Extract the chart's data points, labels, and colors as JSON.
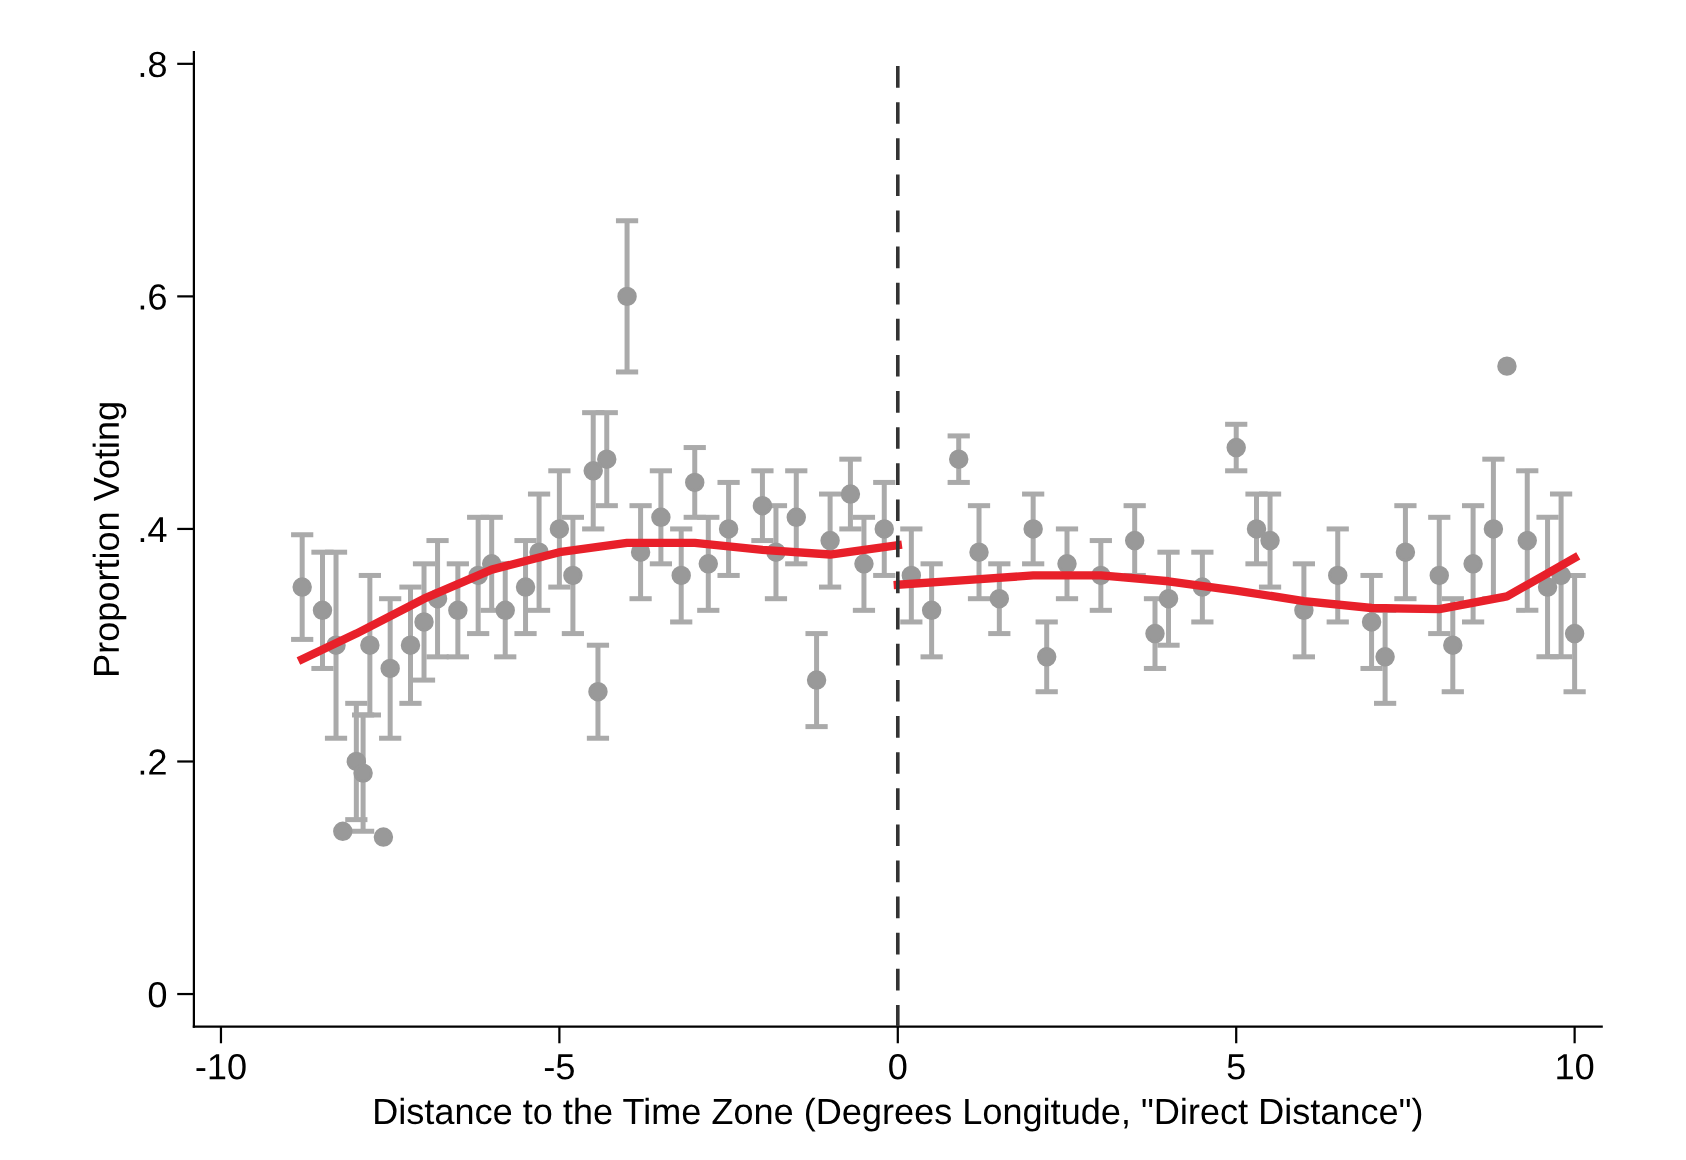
{
  "chart_data": {
    "type": "scatter",
    "xlabel": "Distance to the Time Zone (Degrees Longitude, \"Direct Distance\")",
    "ylabel": "Proportion Voting",
    "xlim": [
      -10.4,
      10.4
    ],
    "ylim": [
      -0.028,
      0.81
    ],
    "xticks": [
      -10,
      -5,
      0,
      5,
      10
    ],
    "yticks": [
      0,
      {
        "value": 0.2,
        "label": ".2"
      },
      {
        "value": 0.4,
        "label": ".4"
      },
      {
        "value": 0.6,
        "label": ".6"
      },
      {
        "value": 0.8,
        "label": ".8"
      }
    ],
    "grid": false,
    "marker": "circle",
    "ref_lines": [
      {
        "axis": "x",
        "value": 0,
        "color": "#333333",
        "line_style": "dashed"
      }
    ],
    "series": [
      {
        "color": "#999999",
        "x": [
          -8.8,
          -8.5,
          -8.3,
          -8.2,
          -8.0,
          -7.9,
          -7.8,
          -7.6,
          -7.5,
          -7.2,
          -7.0,
          -6.8,
          -6.5,
          -6.2,
          -6.0,
          -5.8,
          -5.5,
          -5.3,
          -5.0,
          -4.8,
          -4.5,
          -4.43,
          -4.3,
          -4.0,
          -3.8,
          -3.5,
          -3.2,
          -3.0,
          -2.8,
          -2.5,
          -2.0,
          -1.8,
          -1.5,
          -1.2,
          -1.0,
          -0.7,
          -0.5,
          -0.2,
          0.2,
          0.5,
          0.9,
          1.2,
          1.5,
          2.0,
          2.2,
          2.5,
          3.0,
          3.5,
          3.8,
          4.0,
          4.5,
          5.0,
          5.3,
          5.5,
          6.0,
          6.5,
          7.0,
          7.2,
          7.5,
          8.0,
          8.2,
          8.5,
          8.8,
          9.0,
          9.3,
          9.6,
          9.8,
          10.0
        ],
        "values": [
          0.35,
          0.33,
          0.3,
          0.14,
          0.2,
          0.19,
          0.3,
          0.135,
          0.28,
          0.3,
          0.32,
          0.34,
          0.33,
          0.36,
          0.37,
          0.33,
          0.35,
          0.38,
          0.4,
          0.36,
          0.45,
          0.26,
          0.46,
          0.6,
          0.38,
          0.41,
          0.36,
          0.44,
          0.37,
          0.4,
          0.42,
          0.38,
          0.41,
          0.27,
          0.39,
          0.43,
          0.37,
          0.4,
          0.36,
          0.33,
          0.46,
          0.38,
          0.34,
          0.4,
          0.29,
          0.37,
          0.36,
          0.39,
          0.31,
          0.34,
          0.35,
          0.47,
          0.4,
          0.39,
          0.33,
          0.36,
          0.32,
          0.29,
          0.38,
          0.36,
          0.3,
          0.37,
          0.4,
          0.54,
          0.39,
          0.35,
          0.36,
          0.31
        ],
        "errors": [
          0.045,
          0.05,
          0.08,
          null,
          0.05,
          0.05,
          0.06,
          null,
          0.06,
          0.05,
          0.05,
          0.05,
          0.04,
          0.05,
          0.04,
          0.04,
          0.04,
          0.05,
          0.05,
          0.05,
          0.05,
          0.04,
          0.04,
          0.065,
          0.04,
          0.04,
          0.04,
          0.03,
          0.04,
          0.04,
          0.03,
          0.04,
          0.04,
          0.04,
          0.04,
          0.03,
          0.04,
          0.04,
          0.04,
          0.04,
          0.02,
          0.04,
          0.03,
          0.03,
          0.03,
          0.03,
          0.03,
          0.03,
          0.03,
          0.04,
          0.03,
          0.02,
          0.03,
          0.04,
          0.04,
          0.04,
          0.04,
          0.04,
          0.04,
          0.05,
          0.04,
          0.05,
          0.06,
          null,
          0.06,
          0.06,
          0.07,
          0.05
        ]
      },
      {
        "type": "line",
        "color": "#e8202a",
        "marker": "none",
        "x": [
          -8.8,
          -8,
          -7,
          -6,
          -5,
          -4,
          -3,
          -2,
          -1,
          0
        ],
        "values": [
          0.288,
          0.31,
          0.34,
          0.365,
          0.38,
          0.388,
          0.388,
          0.382,
          0.378,
          0.386
        ]
      },
      {
        "type": "line",
        "color": "#e8202a",
        "marker": "none",
        "x": [
          0,
          1,
          2,
          3,
          4,
          5,
          6,
          7,
          8,
          9,
          10
        ],
        "values": [
          0.352,
          0.356,
          0.36,
          0.36,
          0.355,
          0.347,
          0.338,
          0.332,
          0.331,
          0.342,
          0.375
        ]
      }
    ]
  }
}
